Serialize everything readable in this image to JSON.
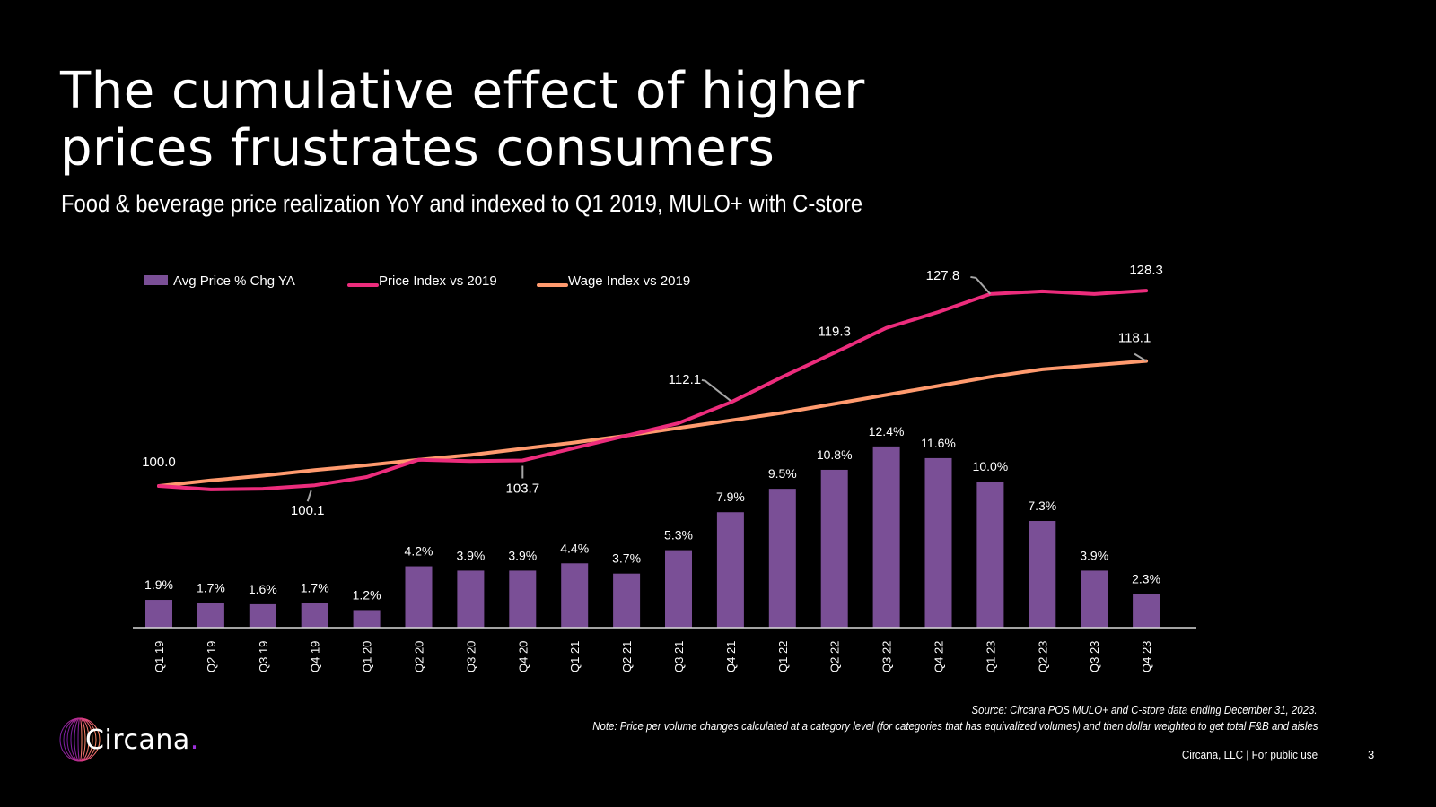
{
  "slide": {
    "title_lines": [
      "The cumulative effect of higher",
      "prices frustrates consumers"
    ],
    "subtitle": "Food & beverage price realization YoY and indexed to Q1 2019, MULO+ with C-store",
    "source": "Source: Circana POS MULO+ and C-store data ending December 31, 2023.",
    "note": "Note: Price per volume changes calculated at a category level (for categories that has equivalized volumes) and then dollar weighted to get total F&B and aisles",
    "footer": "Circana, LLC |  For public use",
    "page_number": "3",
    "logo_text": "Circana",
    "logo_dot": "."
  },
  "colors": {
    "background": "#000000",
    "bar": "#7a4f96",
    "price_line": "#ec2c7c",
    "wage_line": "#ff9a6e",
    "leader": "#a6a6a6",
    "axis": "#d9d9d9",
    "logo_accent": "#9b30d9"
  },
  "chart_data": {
    "type": "bar+line",
    "title": "Food & beverage price realization YoY and indexed to Q1 2019, MULO+ with C-store",
    "categories": [
      "Q1 19",
      "Q2 19",
      "Q3 19",
      "Q4 19",
      "Q1 20",
      "Q2 20",
      "Q3 20",
      "Q4 20",
      "Q1 21",
      "Q2 21",
      "Q3 21",
      "Q4 21",
      "Q1 22",
      "Q2 22",
      "Q3 22",
      "Q4 22",
      "Q1 23",
      "Q2 23",
      "Q3 23",
      "Q4 23"
    ],
    "legend": {
      "placement": "top-left",
      "entries": [
        "Avg Price % Chg YA",
        "Price Index vs 2019",
        "Wage Index vs 2019"
      ]
    },
    "series": [
      {
        "name": "Avg Price % Chg YA",
        "type": "bar",
        "axis": "percent",
        "values": [
          1.9,
          1.7,
          1.6,
          1.7,
          1.2,
          4.2,
          3.9,
          3.9,
          4.4,
          3.7,
          5.3,
          7.9,
          9.5,
          10.8,
          12.4,
          11.6,
          10.0,
          7.3,
          3.9,
          2.3
        ],
        "labels": [
          "1.9%",
          "1.7%",
          "1.6%",
          "1.7%",
          "1.2%",
          "4.2%",
          "3.9%",
          "3.9%",
          "4.4%",
          "3.7%",
          "5.3%",
          "7.9%",
          "9.5%",
          "10.8%",
          "12.4%",
          "11.6%",
          "10.0%",
          "7.3%",
          "3.9%",
          "2.3%"
        ]
      },
      {
        "name": "Price Index vs 2019",
        "type": "line",
        "axis": "index",
        "values": [
          100.0,
          99.5,
          99.6,
          100.1,
          101.3,
          103.8,
          103.6,
          103.7,
          105.5,
          107.3,
          109.1,
          112.1,
          115.8,
          119.3,
          122.9,
          125.2,
          127.8,
          128.2,
          127.8,
          128.3
        ],
        "annotations": [
          {
            "index": 0,
            "text": "100.0"
          },
          {
            "index": 3,
            "text": "100.1"
          },
          {
            "index": 7,
            "text": "103.7"
          },
          {
            "index": 11,
            "text": "112.1"
          },
          {
            "index": 13,
            "text": "119.3"
          },
          {
            "index": 16,
            "text": "127.8"
          },
          {
            "index": 19,
            "text": "128.3"
          }
        ]
      },
      {
        "name": "Wage Index vs 2019",
        "type": "line",
        "axis": "index",
        "values": [
          100.0,
          100.8,
          101.5,
          102.3,
          103.0,
          103.8,
          104.5,
          105.4,
          106.3,
          107.3,
          108.4,
          109.5,
          110.6,
          111.9,
          113.2,
          114.5,
          115.8,
          116.9,
          117.5,
          118.1
        ],
        "annotations": [
          {
            "index": 19,
            "text": "118.1"
          }
        ]
      }
    ],
    "percent_axis_range": [
      0,
      31
    ],
    "index_axis_range": [
      85,
      135
    ],
    "grid": false,
    "xlabel": "",
    "ylabel": ""
  }
}
